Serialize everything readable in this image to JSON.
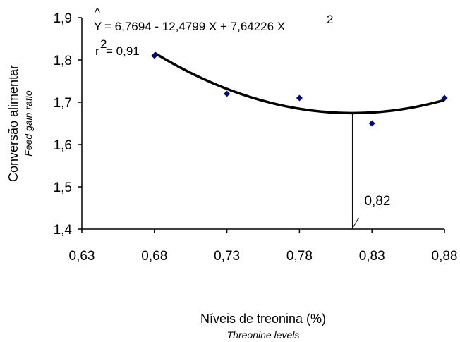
{
  "chart_data": {
    "type": "scatter",
    "equation": "= 6,7694 - 12,4799 X + 7,64226 X",
    "equation_y_symbol": "Y",
    "equation_exponent": "2",
    "r2_prefix": "r",
    "r2_exponent": "2",
    "r2_value": "= 0,91",
    "ylabel": "Conversão alimentar",
    "ylabel_sub": "Feed gain ratio",
    "xlabel": "Níveis de treonina (%)",
    "xlabel_sub": "Threonine levels",
    "x_ticks": [
      "0,63",
      "0,68",
      "0,73",
      "0,78",
      "0,83",
      "0,88"
    ],
    "y_ticks": [
      "1,4",
      "1,5",
      "1,6",
      "1,7",
      "1,8",
      "1,9"
    ],
    "xlim": [
      0.63,
      0.88
    ],
    "ylim": [
      1.4,
      1.9
    ],
    "points": [
      {
        "x": 0.68,
        "y": 1.81
      },
      {
        "x": 0.73,
        "y": 1.72
      },
      {
        "x": 0.78,
        "y": 1.71
      },
      {
        "x": 0.83,
        "y": 1.65
      },
      {
        "x": 0.88,
        "y": 1.71
      }
    ],
    "fit": {
      "a": 6.7694,
      "b": -12.4799,
      "c": 7.64226,
      "x_start": 0.68,
      "x_end": 0.88
    },
    "optimum": {
      "x": 0.8165,
      "label": "0,82"
    },
    "marker_color": "#0a0a6e",
    "line_color": "#000000"
  }
}
